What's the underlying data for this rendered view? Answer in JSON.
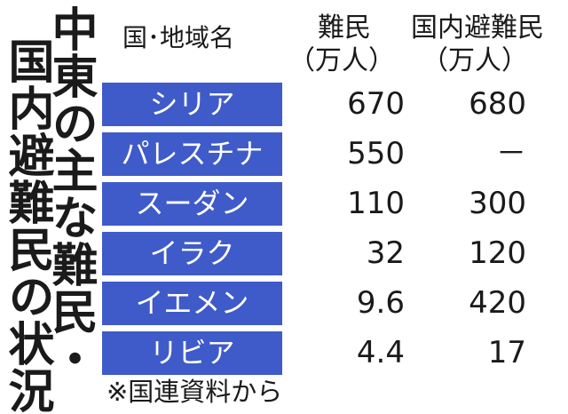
{
  "title": {
    "line1": "中東の主な難民・",
    "line2": "国内避難民の状況"
  },
  "headers": {
    "country": "国･地域名",
    "refugees_line1": "難民",
    "refugees_line2": "（万人）",
    "idp_line1": "国内避難民",
    "idp_line2": "（万人）"
  },
  "rows": [
    {
      "name": "シリア",
      "refugees": "670",
      "idp": "680"
    },
    {
      "name": "パレスチナ",
      "refugees": "550",
      "idp": "－"
    },
    {
      "name": "スーダン",
      "refugees": "110",
      "idp": "300"
    },
    {
      "name": "イラク",
      "refugees": "32",
      "idp": "120"
    },
    {
      "name": "イエメン",
      "refugees": "9.6",
      "idp": "420"
    },
    {
      "name": "リビア",
      "refugees": "4.4",
      "idp": "17"
    }
  ],
  "source": "※国連資料から",
  "colors": {
    "name_cell_bg": "#3f5bc9",
    "name_cell_text": "#ffffff"
  }
}
